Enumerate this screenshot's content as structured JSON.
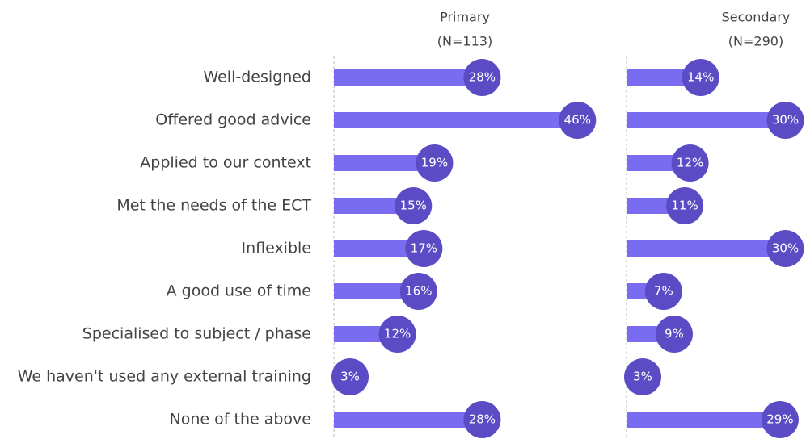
{
  "chart_data": {
    "type": "bar",
    "categories": [
      "Well-designed",
      "Offered good advice",
      "Applied to our context",
      "Met the needs of the ECT",
      "Inflexible",
      "A good use of time",
      "Specialised to subject / phase",
      "We haven't used any external training",
      "None of the above"
    ],
    "series": [
      {
        "name": "Primary",
        "sample": "(N=113)",
        "color": "#7a6cf0",
        "values": [
          28,
          46,
          19,
          15,
          17,
          16,
          12,
          3,
          28
        ],
        "value_labels": [
          "28%",
          "46%",
          "19%",
          "15%",
          "17%",
          "16%",
          "12%",
          "3%",
          "28%"
        ]
      },
      {
        "name": "Secondary",
        "sample": "(N=290)",
        "color": "#7a6cf0",
        "values": [
          14,
          30,
          12,
          11,
          30,
          7,
          9,
          3,
          29
        ],
        "value_labels": [
          "14%",
          "30%",
          "12%",
          "11%",
          "30%",
          "7%",
          "9%",
          "3%",
          "29%"
        ]
      }
    ]
  }
}
